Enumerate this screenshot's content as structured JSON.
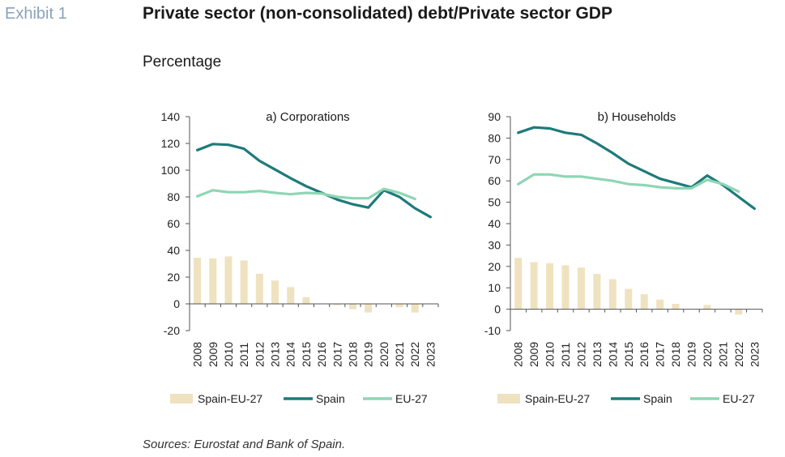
{
  "header": {
    "exhibit": "Exhibit 1",
    "title": "Private sector (non-consolidated) debt/Private sector GDP",
    "subtitle": "Percentage"
  },
  "footer": {
    "source": "Sources: Eurostat and Bank of Spain."
  },
  "colors": {
    "bar": "#efe2c0",
    "spain": "#1f7a7a",
    "eu": "#8ed6b4",
    "axis": "#555555"
  },
  "chart_data": [
    {
      "type": "bar+line",
      "title": "a) Corporations",
      "categories": [
        "2008",
        "2009",
        "2010",
        "2011",
        "2012",
        "2013",
        "2014",
        "2015",
        "2016",
        "2017",
        "2018",
        "2019",
        "2020",
        "2021",
        "2022",
        "2023"
      ],
      "ylim": [
        -20,
        140
      ],
      "yticks": [
        -20,
        0,
        20,
        40,
        60,
        80,
        100,
        120,
        140
      ],
      "series": [
        {
          "name": "Spain-EU-27",
          "kind": "bar",
          "values": [
            34.5,
            34,
            35.5,
            32.5,
            22.5,
            17.5,
            12.5,
            5,
            0,
            -1,
            -4,
            -6.5,
            0,
            -2.5,
            -6.5,
            null
          ]
        },
        {
          "name": "Spain",
          "kind": "line",
          "values": [
            115,
            119.5,
            119,
            116,
            107,
            100.5,
            94,
            88,
            83,
            78,
            74.5,
            72,
            85,
            80,
            71.5,
            65
          ]
        },
        {
          "name": "EU-27",
          "kind": "line",
          "values": [
            80.5,
            85,
            83.5,
            83.5,
            84.5,
            83,
            82,
            83,
            82.5,
            80,
            79,
            79,
            86,
            83,
            78.5,
            null
          ]
        }
      ],
      "legend": "bottom"
    },
    {
      "type": "bar+line",
      "title": "b) Households",
      "categories": [
        "2008",
        "2009",
        "2010",
        "2011",
        "2012",
        "2013",
        "2014",
        "2015",
        "2016",
        "2017",
        "2018",
        "2019",
        "2020",
        "2021",
        "2022",
        "2023"
      ],
      "ylim": [
        -10,
        90
      ],
      "yticks": [
        -10,
        0,
        10,
        20,
        30,
        40,
        50,
        60,
        70,
        80,
        90
      ],
      "series": [
        {
          "name": "Spain-EU-27",
          "kind": "bar",
          "values": [
            24,
            22,
            21.5,
            20.5,
            19.5,
            16.5,
            14,
            9.5,
            7,
            4.5,
            2.5,
            0,
            2,
            0,
            -2.5,
            null
          ]
        },
        {
          "name": "Spain",
          "kind": "line",
          "values": [
            82.5,
            85,
            84.5,
            82.5,
            81.5,
            77.5,
            73,
            68,
            64.5,
            61,
            59,
            57,
            62.5,
            58,
            52.5,
            47
          ]
        },
        {
          "name": "EU-27",
          "kind": "line",
          "values": [
            58.5,
            63,
            63,
            62,
            62,
            61,
            60,
            58.5,
            58,
            57,
            56.5,
            56.5,
            60.5,
            58.5,
            55,
            null
          ]
        }
      ],
      "legend": "bottom"
    }
  ]
}
